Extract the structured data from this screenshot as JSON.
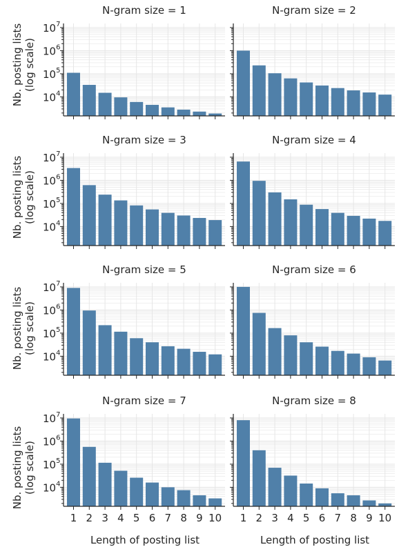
{
  "figure": {
    "ylabel_line1": "Nb. posting lists",
    "ylabel_line2": "(log scale)",
    "xlabel": "Length of posting list"
  },
  "colors": {
    "bar": "#5080a9",
    "grid": "#e6e6e6",
    "axis": "#262626",
    "text": "#262626"
  },
  "chart_data": [
    {
      "type": "bar",
      "title": "N-gram size = 1",
      "yscale": "log",
      "ylim": [
        1500,
        15000000
      ],
      "categories": [
        "1",
        "2",
        "3",
        "4",
        "5",
        "6",
        "7",
        "8",
        "9",
        "10"
      ],
      "values": [
        110000,
        33000,
        15000,
        9500,
        6000,
        4500,
        3500,
        2800,
        2300,
        1900
      ],
      "yticks": [
        {
          "base": "10",
          "exp": "4",
          "value": 10000
        },
        {
          "base": "10",
          "exp": "5",
          "value": 100000
        },
        {
          "base": "10",
          "exp": "6",
          "value": 1000000
        },
        {
          "base": "10",
          "exp": "7",
          "value": 10000000
        }
      ],
      "grid": true
    },
    {
      "type": "bar",
      "title": "N-gram size = 2",
      "yscale": "log",
      "ylim": [
        1500,
        15000000
      ],
      "categories": [
        "1",
        "2",
        "3",
        "4",
        "5",
        "6",
        "7",
        "8",
        "9",
        "10"
      ],
      "values": [
        1000000,
        230000,
        105000,
        63000,
        42000,
        31000,
        24000,
        19000,
        15500,
        12500
      ],
      "grid": true
    },
    {
      "type": "bar",
      "title": "N-gram size = 3",
      "yscale": "log",
      "ylim": [
        1500,
        15000000
      ],
      "categories": [
        "1",
        "2",
        "3",
        "4",
        "5",
        "6",
        "7",
        "8",
        "9",
        "10"
      ],
      "values": [
        3400000,
        620000,
        240000,
        135000,
        82000,
        55000,
        39000,
        30000,
        23500,
        19000
      ],
      "yticks": [
        {
          "base": "10",
          "exp": "4",
          "value": 10000
        },
        {
          "base": "10",
          "exp": "5",
          "value": 100000
        },
        {
          "base": "10",
          "exp": "6",
          "value": 1000000
        },
        {
          "base": "10",
          "exp": "7",
          "value": 10000000
        }
      ],
      "grid": true
    },
    {
      "type": "bar",
      "title": "N-gram size = 4",
      "yscale": "log",
      "ylim": [
        1500,
        15000000
      ],
      "categories": [
        "1",
        "2",
        "3",
        "4",
        "5",
        "6",
        "7",
        "8",
        "9",
        "10"
      ],
      "values": [
        6500000,
        950000,
        300000,
        150000,
        88000,
        57000,
        39000,
        29000,
        22000,
        17500
      ],
      "grid": true
    },
    {
      "type": "bar",
      "title": "N-gram size = 5",
      "yscale": "log",
      "ylim": [
        1500,
        15000000
      ],
      "categories": [
        "1",
        "2",
        "3",
        "4",
        "5",
        "6",
        "7",
        "8",
        "9",
        "10"
      ],
      "values": [
        9000000,
        950000,
        220000,
        115000,
        60000,
        40000,
        27000,
        21000,
        15500,
        12000
      ],
      "yticks": [
        {
          "base": "10",
          "exp": "4",
          "value": 10000
        },
        {
          "base": "10",
          "exp": "5",
          "value": 100000
        },
        {
          "base": "10",
          "exp": "6",
          "value": 1000000
        },
        {
          "base": "10",
          "exp": "7",
          "value": 10000000
        }
      ],
      "grid": true
    },
    {
      "type": "bar",
      "title": "N-gram size = 6",
      "yscale": "log",
      "ylim": [
        1500,
        15000000
      ],
      "categories": [
        "1",
        "2",
        "3",
        "4",
        "5",
        "6",
        "7",
        "8",
        "9",
        "10"
      ],
      "values": [
        10000000,
        750000,
        165000,
        80000,
        40000,
        26000,
        17000,
        13000,
        9000,
        6500
      ],
      "grid": true
    },
    {
      "type": "bar",
      "title": "N-gram size = 7",
      "yscale": "log",
      "ylim": [
        1500,
        15000000
      ],
      "categories": [
        "1",
        "2",
        "3",
        "4",
        "5",
        "6",
        "7",
        "8",
        "9",
        "10"
      ],
      "values": [
        9500000,
        560000,
        115000,
        52000,
        26000,
        16000,
        10000,
        7500,
        4500,
        3300
      ],
      "yticks": [
        {
          "base": "10",
          "exp": "4",
          "value": 10000
        },
        {
          "base": "10",
          "exp": "5",
          "value": 100000
        },
        {
          "base": "10",
          "exp": "6",
          "value": 1000000
        },
        {
          "base": "10",
          "exp": "7",
          "value": 10000000
        }
      ],
      "xticks": true,
      "grid": true
    },
    {
      "type": "bar",
      "title": "N-gram size = 8",
      "yscale": "log",
      "ylim": [
        1500,
        15000000
      ],
      "categories": [
        "1",
        "2",
        "3",
        "4",
        "5",
        "6",
        "7",
        "8",
        "9",
        "10"
      ],
      "values": [
        8000000,
        400000,
        70000,
        32000,
        14500,
        9000,
        5500,
        4500,
        2700,
        2000
      ],
      "xticks": true,
      "grid": true
    }
  ]
}
